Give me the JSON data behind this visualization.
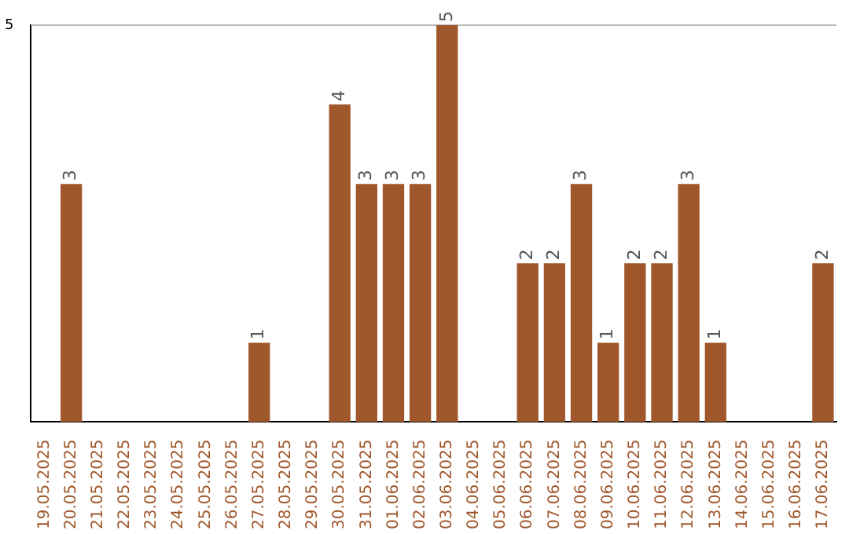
{
  "chart_data": {
    "type": "bar",
    "categories": [
      "19.05.2025",
      "20.05.2025",
      "21.05.2025",
      "22.05.2025",
      "23.05.2025",
      "24.05.2025",
      "25.05.2025",
      "26.05.2025",
      "27.05.2025",
      "28.05.2025",
      "29.05.2025",
      "30.05.2025",
      "31.05.2025",
      "01.06.2025",
      "02.06.2025",
      "03.06.2025",
      "04.06.2025",
      "05.06.2025",
      "06.06.2025",
      "07.06.2025",
      "08.06.2025",
      "09.06.2025",
      "10.06.2025",
      "11.06.2025",
      "12.06.2025",
      "13.06.2025",
      "14.06.2025",
      "15.06.2025",
      "16.06.2025",
      "17.06.2025"
    ],
    "values": [
      0,
      3,
      0,
      0,
      0,
      0,
      0,
      0,
      1,
      0,
      0,
      4,
      3,
      3,
      3,
      5,
      0,
      0,
      2,
      2,
      3,
      1,
      2,
      2,
      3,
      1,
      0,
      0,
      0,
      2
    ],
    "value_labels": [
      null,
      "3",
      null,
      null,
      null,
      null,
      null,
      null,
      "1",
      null,
      null,
      "4",
      "3",
      "3",
      "3",
      "5",
      null,
      null,
      "2",
      "2",
      "3",
      "1",
      "2",
      "2",
      "3",
      "1",
      null,
      null,
      null,
      "2"
    ],
    "color": "#a0572b",
    "ylim": [
      0,
      5
    ],
    "yticks": [
      5
    ],
    "ref_lines": [
      {
        "axis": "y",
        "value": 5,
        "color": "#bbbbbb"
      }
    ],
    "legend": false
  }
}
